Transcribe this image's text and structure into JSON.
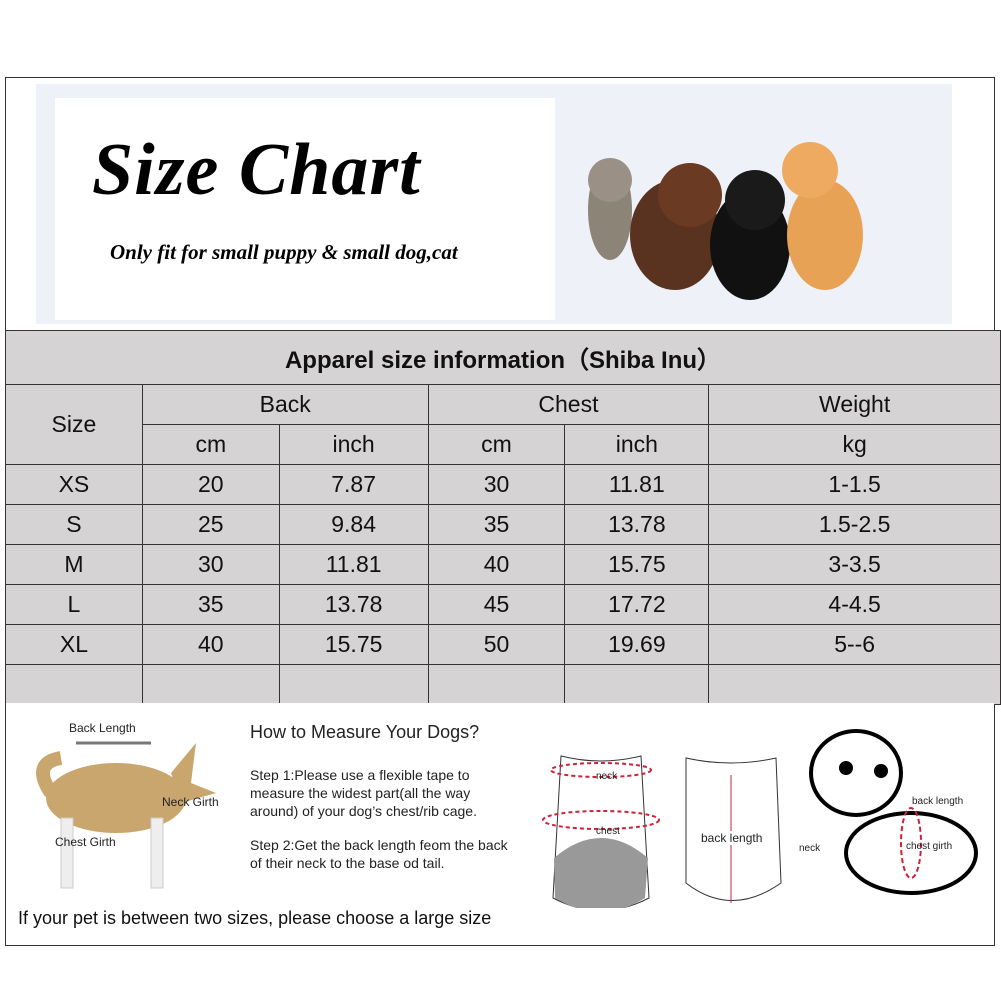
{
  "header": {
    "title": "Size Chart",
    "subtitle": "Only fit for  small puppy & small dog,cat"
  },
  "table": {
    "caption": "Apparel  size  information（Shiba Inu）",
    "size_label": "Size",
    "groups": [
      "Back",
      "Chest",
      "Weight"
    ],
    "units": [
      "cm",
      "inch",
      "cm",
      "inch",
      "kg"
    ],
    "rows": [
      [
        "XS",
        "20",
        "7.87",
        "30",
        "11.81",
        "1-1.5"
      ],
      [
        "S",
        "25",
        "9.84",
        "35",
        "13.78",
        "1.5-2.5"
      ],
      [
        "M",
        "30",
        "11.81",
        "40",
        "15.75",
        "3-3.5"
      ],
      [
        "L",
        "35",
        "13.78",
        "45",
        "17.72",
        "4-4.5"
      ],
      [
        "XL",
        "40",
        "15.75",
        "50",
        "19.69",
        "5--6"
      ]
    ]
  },
  "measure": {
    "dog_labels": {
      "back": "Back Length",
      "neck": "Neck Girth",
      "chest": "Chest Girth"
    },
    "heading": "How to Measure Your Dogs?",
    "step1": "Step 1:Please use a flexible tape to measure the widest part(all the way around) of your dog’s chest/rib cage.",
    "step2": "Step 2:Get the back length feom the back of their neck to the base od tail.",
    "note": "If your pet is between two sizes, please choose a large size",
    "garment_labels": {
      "neck": "neck",
      "chest": "chest",
      "back": "back length"
    },
    "puppy_labels": {
      "back": "back length",
      "neck": "neck",
      "chest": "chest girth"
    }
  },
  "colors": {
    "table_bg": "#d5d3d3",
    "measure_red": "#d0203a"
  }
}
